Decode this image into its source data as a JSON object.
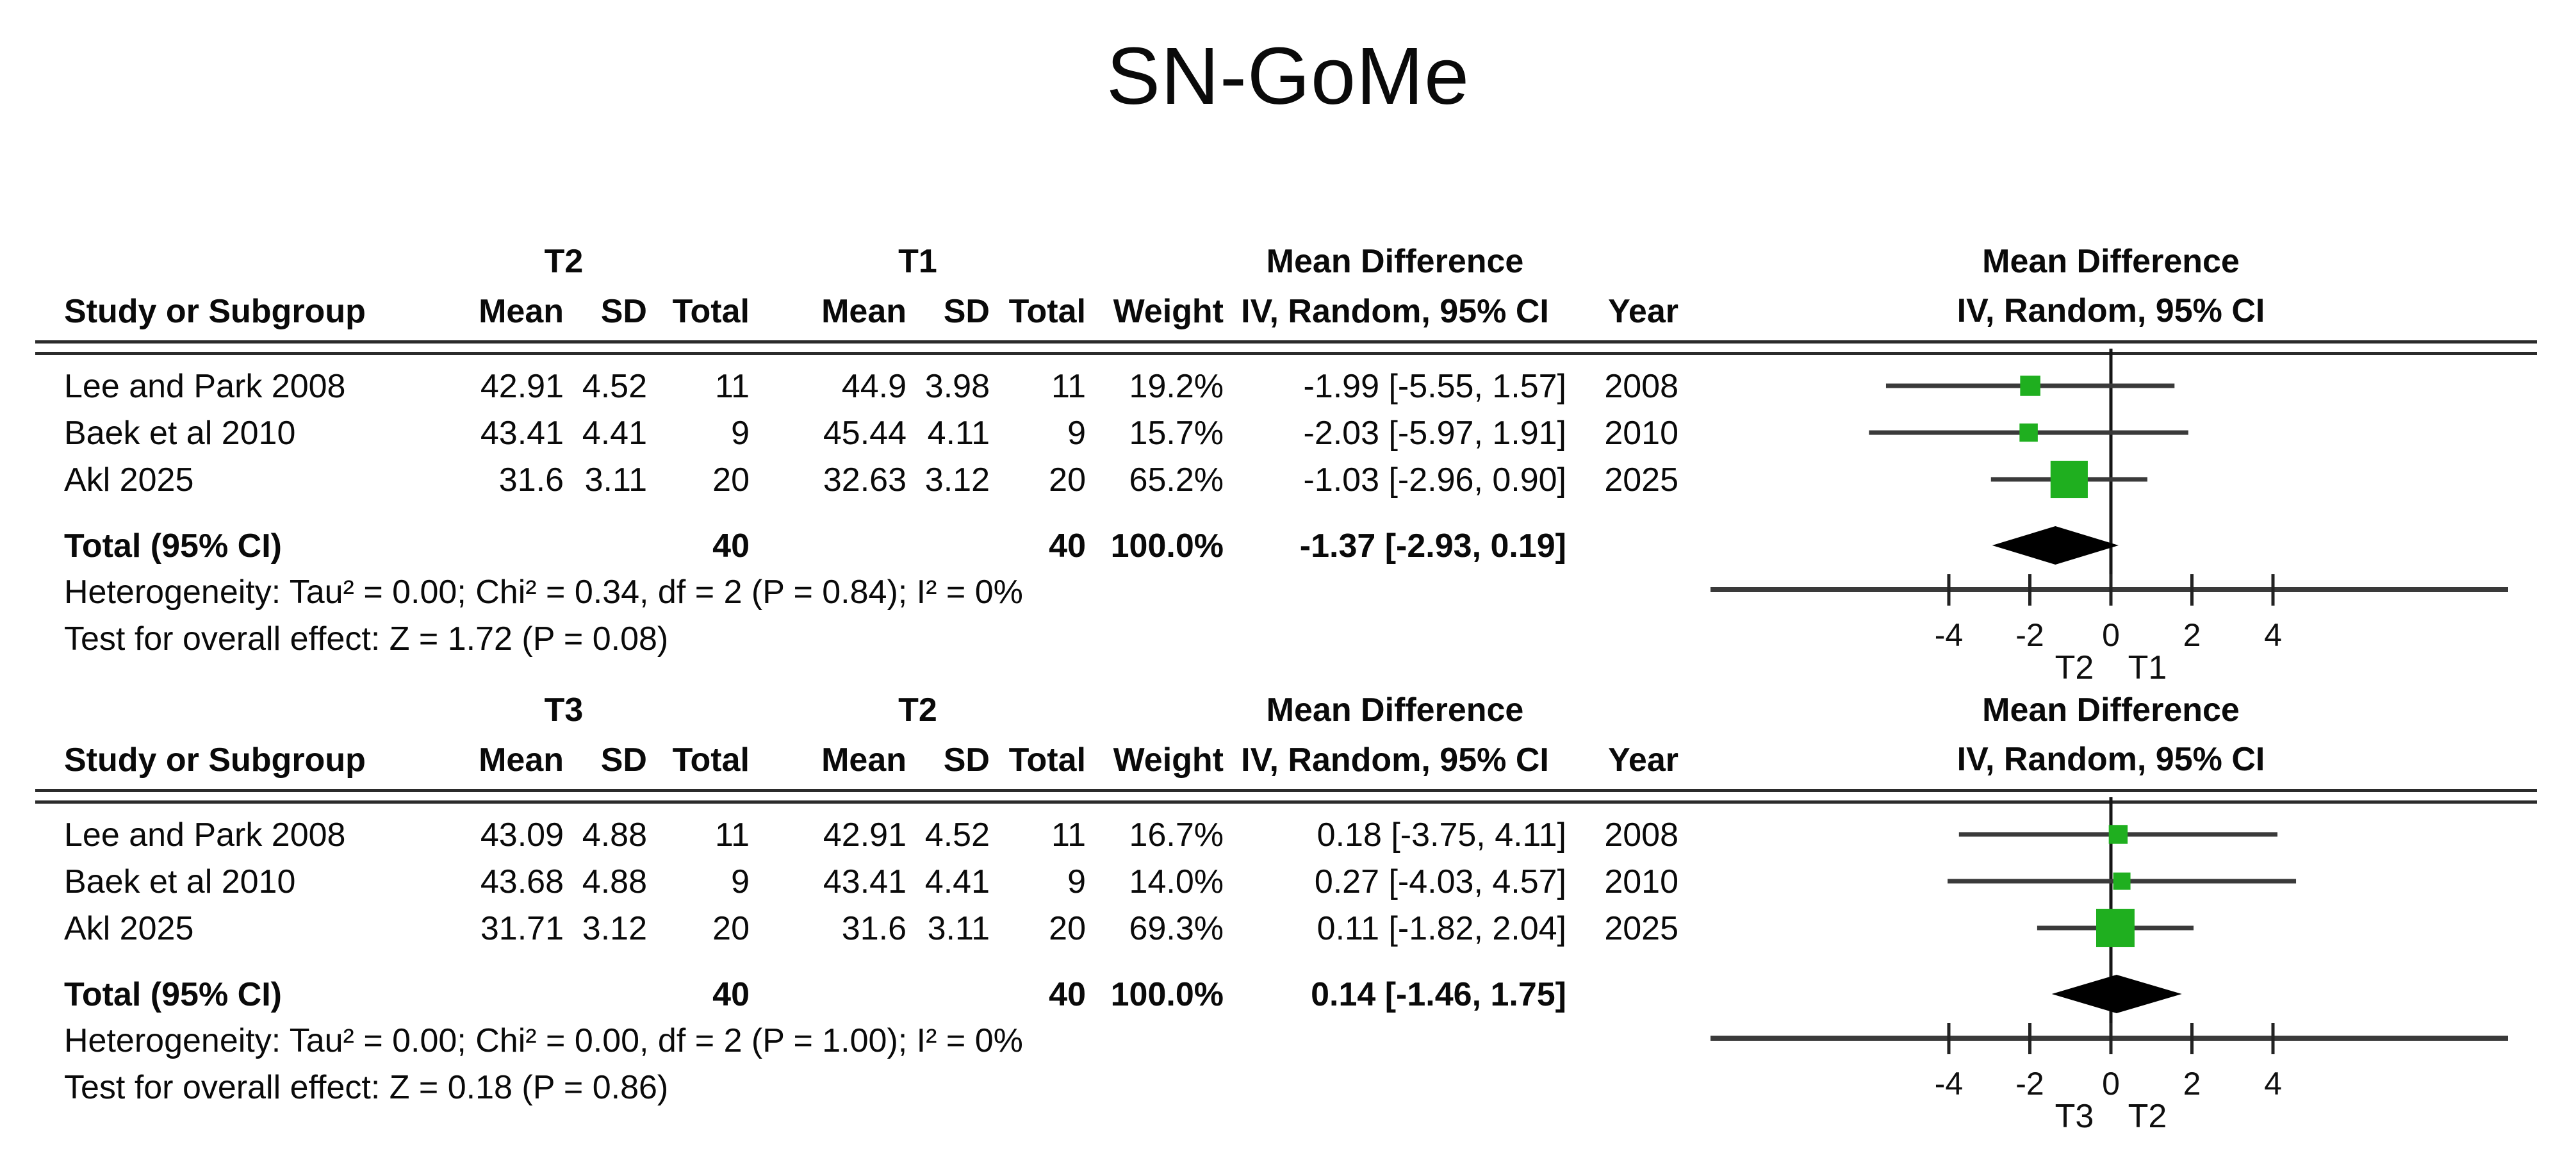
{
  "title": "SN-GoMe",
  "colors": {
    "marker_green": "#1FAF1F",
    "ci_line": "#3A3A3A",
    "axis_line": "#3A3A3A",
    "zero_line": "#151515",
    "diamond": "#000000"
  },
  "panels": [
    {
      "group1_label": "T2",
      "group2_label": "T1",
      "effect_group_header": "Mean Difference",
      "plot_header_line1": "Mean Difference",
      "plot_header_line2": "IV, Random, 95% CI",
      "columns": [
        "Study or Subgroup",
        "Mean",
        "SD",
        "Total",
        "Mean",
        "SD",
        "Total",
        "Weight",
        "IV, Random, 95% CI",
        "Year"
      ],
      "rows": [
        {
          "study": "Lee and Park 2008",
          "mean1": "42.91",
          "sd1": "4.52",
          "total1": "11",
          "mean2": "44.9",
          "sd2": "3.98",
          "total2": "11",
          "weight": "19.2%",
          "ci_text": "-1.99 [-5.55, 1.57]",
          "year": "2008"
        },
        {
          "study": "Baek et al 2010",
          "mean1": "43.41",
          "sd1": "4.41",
          "total1": "9",
          "mean2": "45.44",
          "sd2": "4.11",
          "total2": "9",
          "weight": "15.7%",
          "ci_text": "-2.03 [-5.97, 1.91]",
          "year": "2010"
        },
        {
          "study": "Akl 2025",
          "mean1": "31.6",
          "sd1": "3.11",
          "total1": "20",
          "mean2": "32.63",
          "sd2": "3.12",
          "total2": "20",
          "weight": "65.2%",
          "ci_text": "-1.03 [-2.96, 0.90]",
          "year": "2025"
        }
      ],
      "total": {
        "label": "Total (95% CI)",
        "total1": "40",
        "total2": "40",
        "weight": "100.0%",
        "ci_text": "-1.37 [-2.93, 0.19]"
      },
      "heterogeneity": "Heterogeneity: Tau² = 0.00; Chi² = 0.34, df = 2 (P = 0.84); I² = 0%",
      "overall_test": "Test for overall effect: Z = 1.72 (P = 0.08)"
    },
    {
      "group1_label": "T3",
      "group2_label": "T2",
      "effect_group_header": "Mean Difference",
      "plot_header_line1": "Mean Difference",
      "plot_header_line2": "IV, Random, 95% CI",
      "columns": [
        "Study or Subgroup",
        "Mean",
        "SD",
        "Total",
        "Mean",
        "SD",
        "Total",
        "Weight",
        "IV, Random, 95% CI",
        "Year"
      ],
      "rows": [
        {
          "study": "Lee and Park 2008",
          "mean1": "43.09",
          "sd1": "4.88",
          "total1": "11",
          "mean2": "42.91",
          "sd2": "4.52",
          "total2": "11",
          "weight": "16.7%",
          "ci_text": "0.18 [-3.75, 4.11]",
          "year": "2008"
        },
        {
          "study": "Baek et al 2010",
          "mean1": "43.68",
          "sd1": "4.88",
          "total1": "9",
          "mean2": "43.41",
          "sd2": "4.41",
          "total2": "9",
          "weight": "14.0%",
          "ci_text": "0.27 [-4.03, 4.57]",
          "year": "2010"
        },
        {
          "study": "Akl 2025",
          "mean1": "31.71",
          "sd1": "3.12",
          "total1": "20",
          "mean2": "31.6",
          "sd2": "3.11",
          "total2": "20",
          "weight": "69.3%",
          "ci_text": "0.11 [-1.82, 2.04]",
          "year": "2025"
        }
      ],
      "total": {
        "label": "Total (95% CI)",
        "total1": "40",
        "total2": "40",
        "weight": "100.0%",
        "ci_text": "0.14 [-1.46, 1.75]"
      },
      "heterogeneity": "Heterogeneity: Tau² = 0.00; Chi² = 0.00, df = 2 (P = 1.00); I² = 0%",
      "overall_test": "Test for overall effect: Z = 0.18 (P = 0.86)"
    }
  ],
  "chart_data": [
    {
      "type": "forest",
      "title": "Mean Difference",
      "subtitle": "IV, Random, 95% CI",
      "x_axis": {
        "ticks": [
          -4,
          -2,
          0,
          2,
          4
        ],
        "left_label": "T2",
        "right_label": "T1"
      },
      "studies": [
        {
          "name": "Lee and Park 2008",
          "md": -1.99,
          "ci": [
            -5.55,
            1.57
          ],
          "weight_pct": 19.2,
          "year": 2008
        },
        {
          "name": "Baek et al 2010",
          "md": -2.03,
          "ci": [
            -5.97,
            1.91
          ],
          "weight_pct": 15.7,
          "year": 2010
        },
        {
          "name": "Akl 2025",
          "md": -1.03,
          "ci": [
            -2.96,
            0.9
          ],
          "weight_pct": 65.2,
          "year": 2025
        }
      ],
      "total": {
        "name": "Total (95% CI)",
        "md": -1.37,
        "ci": [
          -2.93,
          0.19
        ],
        "weight_pct": 100.0
      }
    },
    {
      "type": "forest",
      "title": "Mean Difference",
      "subtitle": "IV, Random, 95% CI",
      "x_axis": {
        "ticks": [
          -4,
          -2,
          0,
          2,
          4
        ],
        "left_label": "T3",
        "right_label": "T2"
      },
      "studies": [
        {
          "name": "Lee and Park 2008",
          "md": 0.18,
          "ci": [
            -3.75,
            4.11
          ],
          "weight_pct": 16.7,
          "year": 2008
        },
        {
          "name": "Baek et al 2010",
          "md": 0.27,
          "ci": [
            -4.03,
            4.57
          ],
          "weight_pct": 14.0,
          "year": 2010
        },
        {
          "name": "Akl 2025",
          "md": 0.11,
          "ci": [
            -1.82,
            2.04
          ],
          "weight_pct": 69.3,
          "year": 2025
        }
      ],
      "total": {
        "name": "Total (95% CI)",
        "md": 0.14,
        "ci": [
          -1.46,
          1.75
        ],
        "weight_pct": 100.0
      }
    }
  ]
}
